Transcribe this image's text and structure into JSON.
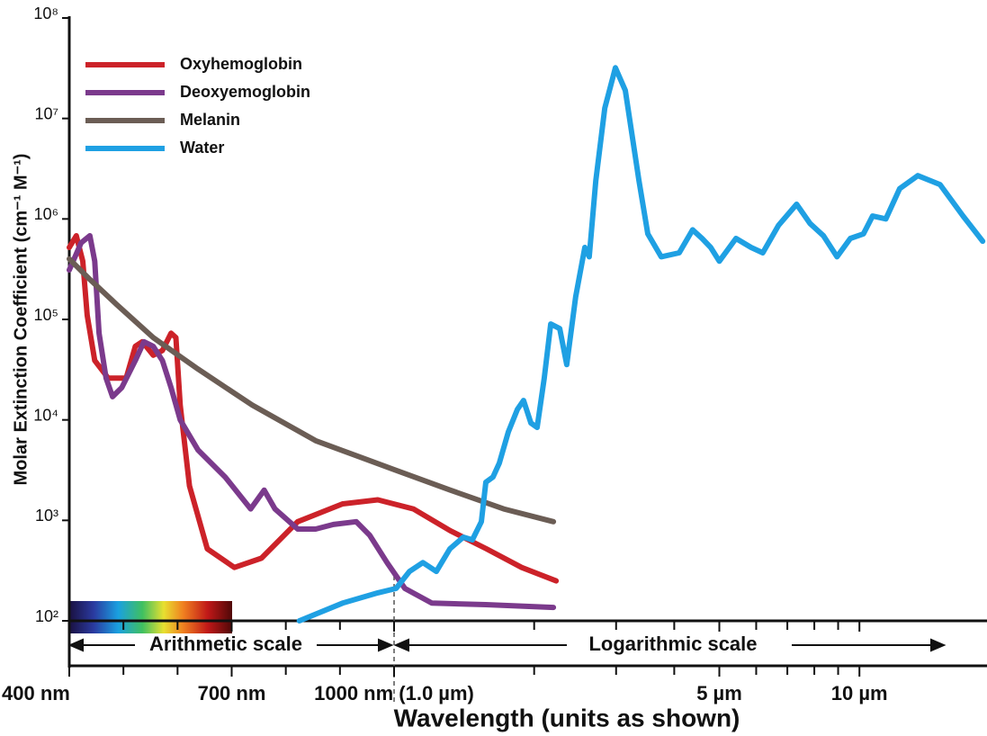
{
  "chart_data": {
    "type": "line",
    "ylabel": "Molar Extinction Coefficient (cm⁻¹ M⁻¹)",
    "xlabel": "Wavelength (units as shown)",
    "annotations": [
      "Arithmetic scale",
      "Logarithmic scale"
    ],
    "ylog": true,
    "x_log_from": 1000,
    "legend": "upper left",
    "xlim": [
      400,
      18800
    ],
    "ylim": [
      100,
      100000000
    ],
    "xticks": [
      {
        "value": 400,
        "label": "400 nm"
      },
      {
        "value": 700,
        "label": "700 nm"
      },
      {
        "value": 1000,
        "label": "1000 nm (1.0 µm)"
      },
      {
        "value": 5000,
        "label": "5 µm"
      },
      {
        "value": 10000,
        "label": "10 µm"
      }
    ],
    "xminorticks": [
      500,
      600,
      800,
      900,
      2000,
      3000,
      4000,
      6000,
      7000,
      8000,
      9000
    ],
    "yticks": [
      {
        "value": 100,
        "label": "10²"
      },
      {
        "value": 1000,
        "label": "10³"
      },
      {
        "value": 10000,
        "label": "10⁴"
      },
      {
        "value": 100000,
        "label": "10⁵"
      },
      {
        "value": 1000000,
        "label": "10⁶"
      },
      {
        "value": 10000000,
        "label": "10⁷"
      },
      {
        "value": 100000000,
        "label": "10⁸"
      }
    ],
    "series": [
      {
        "name": "Oxyhemoglobin",
        "color": "#cc2229",
        "x": [
          400,
          413,
          425,
          433,
          447,
          472,
          505,
          522,
          535,
          555,
          572,
          588,
          597,
          605,
          622,
          655,
          705,
          755,
          822,
          905,
          970,
          1100,
          1320,
          1580,
          1880,
          2230
        ],
        "values": [
          520000,
          680000,
          380000,
          110000,
          39000,
          26000,
          26000,
          54000,
          60000,
          44000,
          49000,
          73000,
          66000,
          14000,
          2200,
          520,
          340,
          420,
          970,
          1460,
          1600,
          1300,
          790,
          520,
          340,
          250
        ]
      },
      {
        "name": "Deoxyemoglobin",
        "color": "#7b3a8c",
        "x": [
          400,
          422,
          438,
          447,
          455,
          468,
          480,
          497,
          522,
          538,
          555,
          572,
          588,
          605,
          638,
          688,
          735,
          760,
          780,
          822,
          855,
          888,
          930,
          955,
          987,
          1055,
          1205,
          1575,
          2200
        ],
        "values": [
          310000,
          580000,
          680000,
          380000,
          73000,
          26000,
          17000,
          21000,
          39000,
          60000,
          54000,
          39000,
          21000,
          10000,
          5000,
          2700,
          1300,
          2000,
          1300,
          820,
          820,
          910,
          970,
          710,
          380,
          210,
          150,
          145,
          136
        ]
      },
      {
        "name": "Melanin",
        "color": "#6b5d55",
        "x": [
          400,
          438,
          488,
          555,
          638,
          738,
          855,
          1000,
          1320,
          1720,
          2200
        ],
        "values": [
          400000,
          250000,
          140000,
          66000,
          32000,
          14000,
          6200,
          3200,
          2000,
          1300,
          970
        ]
      },
      {
        "name": "Water",
        "color": "#1fa0e3",
        "x": [
          825,
          905,
          970,
          1010,
          1079,
          1153,
          1233,
          1318,
          1409,
          1473,
          1540,
          1575,
          1631,
          1683,
          1760,
          1840,
          1898,
          1968,
          2030,
          2102,
          2171,
          2270,
          2350,
          2456,
          2570,
          2626,
          2713,
          2837,
          2990,
          3140,
          3360,
          3510,
          3750,
          4100,
          4380,
          4590,
          4790,
          5000,
          5430,
          5850,
          6200,
          6700,
          7330,
          7830,
          8370,
          8950,
          9560,
          10200,
          10670,
          11400,
          12200,
          13350,
          14900,
          16700,
          18400
        ],
        "values": [
          100,
          150,
          190,
          210,
          310,
          380,
          310,
          520,
          680,
          640,
          970,
          2400,
          2700,
          3700,
          7600,
          12700,
          15600,
          9300,
          8400,
          26000,
          90000,
          81000,
          35500,
          167000,
          520000,
          420000,
          2400000,
          12700000,
          32000000,
          19000000,
          2400000,
          710000,
          420000,
          460000,
          780000,
          640000,
          520000,
          380000,
          640000,
          520000,
          460000,
          860000,
          1400000,
          900000,
          680000,
          420000,
          640000,
          710000,
          1070000,
          1000000,
          2000000,
          2700000,
          2200000,
          1070000,
          600000
        ]
      }
    ]
  }
}
